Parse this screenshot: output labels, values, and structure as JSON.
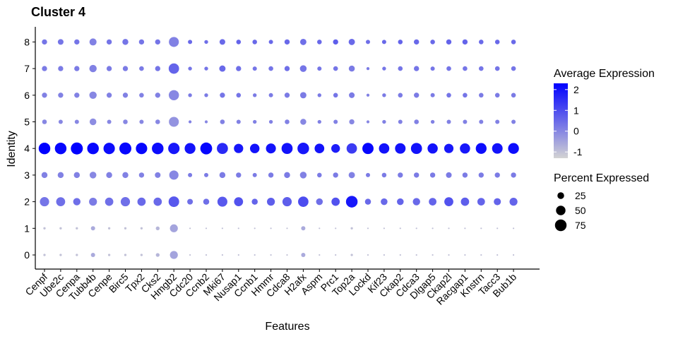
{
  "chart_data": {
    "type": "dotplot",
    "title": "Cluster  4",
    "xlabel": "Features",
    "ylabel": "Identity",
    "features": [
      "Cenpf",
      "Ube2c",
      "Cenpa",
      "Tubb4b",
      "Cenpe",
      "Birc5",
      "Tpx2",
      "Cks2",
      "Hmgb2",
      "Cdc20",
      "Ccnb2",
      "Mki67",
      "Nusap1",
      "Ccnb1",
      "Hmmr",
      "Cdca8",
      "H2afx",
      "Aspm",
      "Prc1",
      "Top2a",
      "Lockd",
      "Kif23",
      "Ckap2",
      "Cdca3",
      "Dlgap5",
      "Ckap2l",
      "Racgap1",
      "Knstrn",
      "Tacc3",
      "Bub1b"
    ],
    "identities": [
      "0",
      "1",
      "2",
      "3",
      "4",
      "5",
      "6",
      "7",
      "8"
    ],
    "color_scale": {
      "min": -1.3,
      "max": 2.3,
      "low": "#d3d3d3",
      "high": "#0000ff"
    },
    "color_legend": {
      "title": "Average Expression",
      "ticks": [
        2,
        1,
        0,
        -1
      ]
    },
    "size_legend": {
      "title": "Percent Expressed",
      "ticks": [
        25,
        50,
        75
      ]
    },
    "grid": false,
    "legend_position": "right",
    "series": [
      {
        "name": "0",
        "pct": [
          3,
          3,
          3,
          10,
          3,
          3,
          3,
          8,
          35,
          1,
          1,
          1,
          1,
          1,
          1,
          1,
          10,
          1,
          1,
          3,
          1,
          1,
          1,
          1,
          1,
          1,
          1,
          1,
          1,
          1
        ],
        "avg": [
          -1,
          -1,
          -1,
          -0.6,
          -1,
          -1,
          -1,
          -0.8,
          -0.5,
          -1,
          -1,
          -1,
          -1,
          -1,
          -1,
          -1,
          -0.6,
          -1,
          -1,
          -1,
          -1,
          -1,
          -1,
          -1,
          -1,
          -1,
          -1,
          -1,
          -1,
          -1
        ]
      },
      {
        "name": "1",
        "pct": [
          3,
          3,
          3,
          10,
          3,
          3,
          3,
          8,
          35,
          1,
          1,
          1,
          1,
          1,
          1,
          1,
          10,
          1,
          1,
          3,
          1,
          1,
          1,
          1,
          1,
          1,
          1,
          1,
          1,
          1
        ],
        "avg": [
          -1,
          -1,
          -1,
          -0.6,
          -1,
          -1,
          -1,
          -0.8,
          -0.5,
          -1,
          -1,
          -1,
          -1,
          -1,
          -1,
          -1,
          -0.6,
          -1,
          -1,
          -1,
          -1,
          -1,
          -1,
          -1,
          -1,
          -1,
          -1,
          -1,
          -1,
          -1
        ]
      },
      {
        "name": "2",
        "pct": [
          48,
          45,
          30,
          35,
          38,
          48,
          38,
          38,
          62,
          18,
          20,
          55,
          45,
          20,
          35,
          48,
          60,
          25,
          38,
          75,
          20,
          25,
          25,
          30,
          32,
          45,
          38,
          32,
          28,
          35
        ],
        "avg": [
          0.3,
          0.4,
          0.4,
          0.2,
          0.4,
          0.4,
          0.5,
          0.5,
          0.8,
          0.4,
          0.4,
          0.8,
          0.9,
          0.6,
          0.7,
          0.7,
          1.0,
          0.4,
          0.9,
          1.9,
          0.5,
          0.5,
          0.6,
          0.5,
          0.6,
          0.9,
          0.7,
          0.6,
          0.6,
          0.6
        ]
      },
      {
        "name": "3",
        "pct": [
          20,
          20,
          20,
          25,
          20,
          20,
          15,
          18,
          48,
          10,
          10,
          20,
          15,
          10,
          15,
          20,
          25,
          12,
          15,
          22,
          10,
          12,
          15,
          15,
          15,
          18,
          15,
          15,
          15,
          15
        ],
        "avg": [
          0.1,
          0.1,
          0.1,
          0.0,
          0.1,
          0.1,
          0.1,
          0.1,
          0.0,
          0.2,
          0.2,
          0.2,
          0.2,
          0.2,
          0.2,
          0.2,
          0.1,
          0.2,
          0.2,
          0.1,
          0.2,
          0.2,
          0.2,
          0.2,
          0.2,
          0.2,
          0.2,
          0.2,
          0.2,
          0.2
        ]
      },
      {
        "name": "4",
        "pct": [
          75,
          75,
          80,
          75,
          72,
          80,
          72,
          75,
          72,
          65,
          78,
          68,
          48,
          50,
          55,
          68,
          75,
          52,
          42,
          60,
          70,
          60,
          62,
          68,
          58,
          48,
          58,
          65,
          62,
          65
        ],
        "avg": [
          2.3,
          2.2,
          2.3,
          2.2,
          2.1,
          2.2,
          2.2,
          2.1,
          1.9,
          2.0,
          2.2,
          1.6,
          1.9,
          2.0,
          2.0,
          2.0,
          1.9,
          2.0,
          1.8,
          1.3,
          2.2,
          2.0,
          2.0,
          2.0,
          2.0,
          1.9,
          1.9,
          2.1,
          2.0,
          2.1
        ]
      },
      {
        "name": "5",
        "pct": [
          12,
          10,
          10,
          25,
          10,
          12,
          10,
          12,
          55,
          5,
          5,
          12,
          10,
          8,
          8,
          12,
          20,
          8,
          10,
          15,
          5,
          8,
          10,
          12,
          8,
          10,
          10,
          10,
          10,
          10
        ],
        "avg": [
          0.0,
          0.0,
          0.0,
          -0.1,
          0.0,
          0.0,
          0.0,
          0.0,
          -0.2,
          0.1,
          0.0,
          0.1,
          0.1,
          0.1,
          0.1,
          0.1,
          0.0,
          0.1,
          0.1,
          0.0,
          0.0,
          0.1,
          0.1,
          0.1,
          0.1,
          0.1,
          0.1,
          0.1,
          0.1,
          0.1
        ]
      },
      {
        "name": "6",
        "pct": [
          15,
          15,
          15,
          30,
          15,
          15,
          12,
          15,
          58,
          8,
          8,
          15,
          12,
          8,
          10,
          15,
          22,
          8,
          12,
          18,
          5,
          8,
          12,
          15,
          10,
          12,
          12,
          12,
          12,
          12
        ],
        "avg": [
          0.1,
          0.1,
          0.1,
          0.0,
          0.1,
          0.1,
          0.1,
          0.1,
          0.0,
          0.2,
          0.2,
          0.3,
          0.3,
          0.2,
          0.2,
          0.2,
          0.2,
          0.2,
          0.3,
          0.2,
          0.1,
          0.2,
          0.2,
          0.2,
          0.2,
          0.3,
          0.3,
          0.2,
          0.2,
          0.2
        ]
      },
      {
        "name": "7",
        "pct": [
          15,
          15,
          15,
          30,
          15,
          15,
          12,
          15,
          60,
          8,
          8,
          22,
          15,
          10,
          12,
          15,
          25,
          10,
          12,
          20,
          5,
          8,
          12,
          15,
          10,
          12,
          12,
          12,
          12,
          12
        ],
        "avg": [
          0.2,
          0.2,
          0.2,
          0.1,
          0.2,
          0.2,
          0.2,
          0.3,
          0.6,
          0.3,
          0.3,
          0.5,
          0.4,
          0.3,
          0.3,
          0.4,
          0.3,
          0.3,
          0.3,
          0.2,
          0.2,
          0.3,
          0.3,
          0.3,
          0.3,
          0.3,
          0.3,
          0.3,
          0.3,
          0.3
        ]
      },
      {
        "name": "8",
        "pct": [
          15,
          18,
          15,
          28,
          15,
          20,
          15,
          15,
          55,
          10,
          8,
          18,
          12,
          12,
          10,
          15,
          22,
          12,
          15,
          22,
          10,
          10,
          12,
          15,
          12,
          15,
          15,
          12,
          12,
          12
        ],
        "avg": [
          0.3,
          0.3,
          0.3,
          0.1,
          0.3,
          0.3,
          0.3,
          0.3,
          0.1,
          0.5,
          0.4,
          0.5,
          0.6,
          0.5,
          0.5,
          0.5,
          0.4,
          0.5,
          0.7,
          0.5,
          0.4,
          0.5,
          0.6,
          0.5,
          0.5,
          0.6,
          0.6,
          0.5,
          0.5,
          0.5
        ]
      }
    ]
  }
}
